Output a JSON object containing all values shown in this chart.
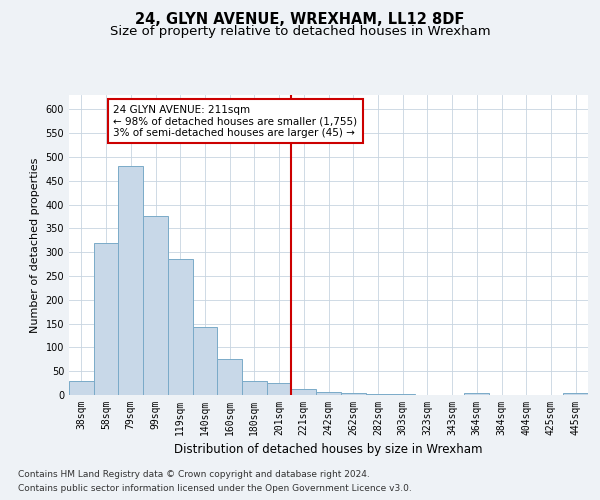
{
  "title": "24, GLYN AVENUE, WREXHAM, LL12 8DF",
  "subtitle": "Size of property relative to detached houses in Wrexham",
  "xlabel": "Distribution of detached houses by size in Wrexham",
  "ylabel": "Number of detached properties",
  "categories": [
    "38sqm",
    "58sqm",
    "79sqm",
    "99sqm",
    "119sqm",
    "140sqm",
    "160sqm",
    "180sqm",
    "201sqm",
    "221sqm",
    "242sqm",
    "262sqm",
    "282sqm",
    "303sqm",
    "323sqm",
    "343sqm",
    "364sqm",
    "384sqm",
    "404sqm",
    "425sqm",
    "445sqm"
  ],
  "values": [
    30,
    320,
    480,
    375,
    285,
    143,
    76,
    30,
    25,
    13,
    6,
    5,
    2,
    2,
    1,
    1,
    4,
    0,
    0,
    0,
    4
  ],
  "bar_color": "#c8d8e8",
  "bar_edge_color": "#7aaac8",
  "marker_bin_index": 8,
  "marker_line_color": "#cc0000",
  "annotation_text": "24 GLYN AVENUE: 211sqm\n← 98% of detached houses are smaller (1,755)\n3% of semi-detached houses are larger (45) →",
  "annotation_box_color": "#cc0000",
  "ylim": [
    0,
    630
  ],
  "yticks": [
    0,
    50,
    100,
    150,
    200,
    250,
    300,
    350,
    400,
    450,
    500,
    550,
    600
  ],
  "footer_line1": "Contains HM Land Registry data © Crown copyright and database right 2024.",
  "footer_line2": "Contains public sector information licensed under the Open Government Licence v3.0.",
  "background_color": "#eef2f6",
  "plot_background_color": "#ffffff",
  "grid_color": "#c8d4e0",
  "title_fontsize": 10.5,
  "subtitle_fontsize": 9.5,
  "xlabel_fontsize": 8.5,
  "ylabel_fontsize": 8,
  "tick_fontsize": 7,
  "annotation_fontsize": 7.5,
  "footer_fontsize": 6.5
}
